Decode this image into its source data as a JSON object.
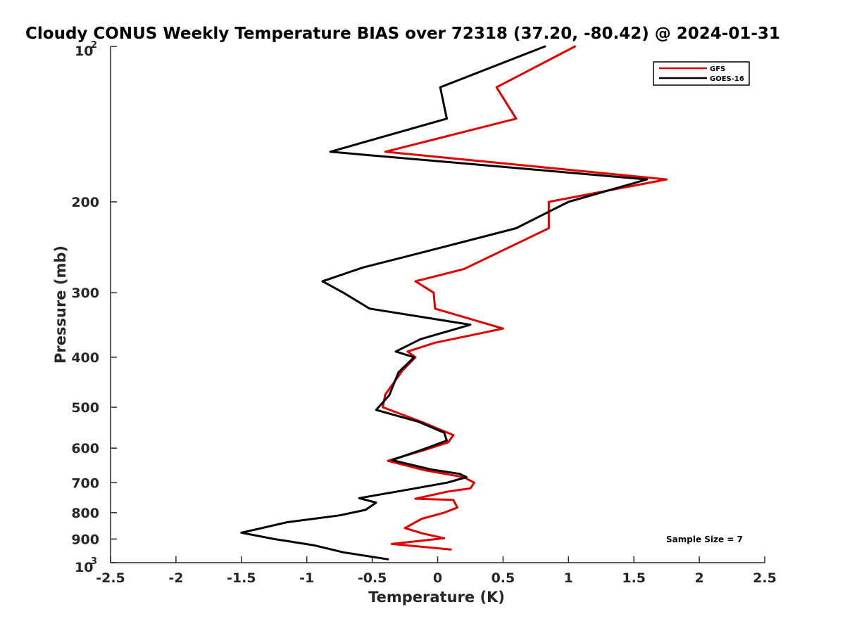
{
  "chart_data": {
    "type": "line",
    "title": "Cloudy CONUS Weekly Temperature BIAS over 72318 (37.20, -80.42) @ 2024-01-31",
    "xlabel": "Temperature (K)",
    "ylabel": "Pressure (mb)",
    "xlim": [
      -2.5,
      2.5
    ],
    "ylim": [
      100,
      1000
    ],
    "y_scale": "log",
    "y_reversed": true,
    "x_ticks": [
      -2.5,
      -2,
      -1.5,
      -1,
      -0.5,
      0,
      0.5,
      1,
      1.5,
      2,
      2.5
    ],
    "x_tick_labels": [
      "-2.5",
      "-2",
      "-1.5",
      "-1",
      "-0.5",
      "0",
      "0.5",
      "1",
      "1.5",
      "2",
      "2.5"
    ],
    "y_ticks": [
      100,
      200,
      300,
      400,
      500,
      600,
      700,
      800,
      900,
      1000
    ],
    "y_tick_labels": [
      {
        "base": "10",
        "sup": "2"
      },
      {
        "base": "200"
      },
      {
        "base": "300"
      },
      {
        "base": "400"
      },
      {
        "base": "500"
      },
      {
        "base": "600"
      },
      {
        "base": "700"
      },
      {
        "base": "800"
      },
      {
        "base": "900"
      },
      {
        "base": "10",
        "sup": "3"
      }
    ],
    "legend_position": "top-right",
    "annotation": "Sample Size = 7",
    "series": [
      {
        "name": "GFS",
        "color": "#e00000",
        "points": [
          [
            1.05,
            100
          ],
          [
            0.45,
            120
          ],
          [
            0.6,
            138
          ],
          [
            -0.4,
            160
          ],
          [
            1.75,
            181
          ],
          [
            0.85,
            200
          ],
          [
            0.85,
            225
          ],
          [
            0.2,
            270
          ],
          [
            -0.17,
            285
          ],
          [
            -0.03,
            300
          ],
          [
            -0.02,
            322
          ],
          [
            0.5,
            352
          ],
          [
            -0.02,
            375
          ],
          [
            -0.23,
            390
          ],
          [
            -0.17,
            400
          ],
          [
            -0.27,
            425
          ],
          [
            -0.4,
            472
          ],
          [
            -0.42,
            500
          ],
          [
            -0.12,
            534
          ],
          [
            0.12,
            566
          ],
          [
            0.08,
            585
          ],
          [
            -0.1,
            605
          ],
          [
            -0.38,
            635
          ],
          [
            -0.1,
            662
          ],
          [
            0.2,
            683
          ],
          [
            0.28,
            700
          ],
          [
            0.25,
            718
          ],
          [
            0.08,
            728
          ],
          [
            -0.17,
            752
          ],
          [
            0.12,
            756
          ],
          [
            0.15,
            782
          ],
          [
            0.05,
            800
          ],
          [
            -0.12,
            822
          ],
          [
            -0.25,
            857
          ],
          [
            -0.12,
            877
          ],
          [
            0.05,
            897
          ],
          [
            -0.35,
            920
          ],
          [
            0.1,
            943
          ]
        ]
      },
      {
        "name": "GOES-16",
        "color": "#000000",
        "points": [
          [
            0.82,
            100
          ],
          [
            0.02,
            120
          ],
          [
            0.07,
            138
          ],
          [
            -0.82,
            160
          ],
          [
            1.6,
            181
          ],
          [
            1.0,
            200
          ],
          [
            0.6,
            225
          ],
          [
            -0.1,
            250
          ],
          [
            -0.57,
            268
          ],
          [
            -0.88,
            285
          ],
          [
            -0.72,
            300
          ],
          [
            -0.52,
            322
          ],
          [
            0.25,
            346
          ],
          [
            -0.13,
            369
          ],
          [
            -0.32,
            390
          ],
          [
            -0.18,
            400
          ],
          [
            -0.3,
            428
          ],
          [
            -0.37,
            474
          ],
          [
            -0.47,
            506
          ],
          [
            -0.15,
            533
          ],
          [
            0.05,
            560
          ],
          [
            0.07,
            580
          ],
          [
            -0.1,
            602
          ],
          [
            -0.35,
            633
          ],
          [
            -0.05,
            660
          ],
          [
            0.17,
            673
          ],
          [
            0.22,
            683
          ],
          [
            0.07,
            700
          ],
          [
            -0.2,
            720
          ],
          [
            -0.6,
            750
          ],
          [
            -0.47,
            765
          ],
          [
            -0.55,
            790
          ],
          [
            -0.75,
            810
          ],
          [
            -1.15,
            835
          ],
          [
            -1.37,
            860
          ],
          [
            -1.5,
            875
          ],
          [
            -1.25,
            900
          ],
          [
            -0.95,
            925
          ],
          [
            -0.72,
            955
          ],
          [
            -0.38,
            985
          ]
        ]
      }
    ]
  }
}
